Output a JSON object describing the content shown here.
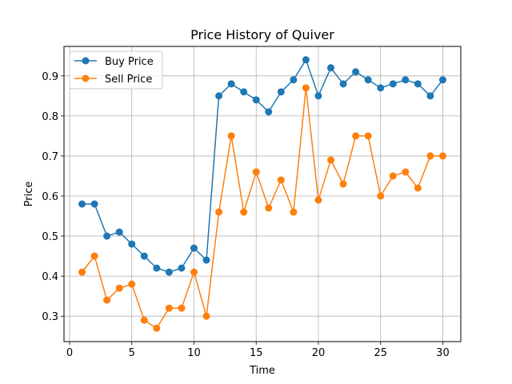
{
  "chart_data": {
    "type": "line",
    "title": "Price History of Quiver",
    "xlabel": "Time",
    "ylabel": "Price",
    "xlim": [
      -0.45,
      31.45
    ],
    "ylim": [
      0.2365,
      0.9735
    ],
    "xticks": [
      0,
      5,
      10,
      15,
      20,
      25,
      30
    ],
    "yticks": [
      0.3,
      0.4,
      0.5,
      0.6,
      0.7,
      0.8,
      0.9
    ],
    "grid": true,
    "legend_position": "top-left",
    "x": [
      1,
      2,
      3,
      4,
      5,
      6,
      7,
      8,
      9,
      10,
      11,
      12,
      13,
      14,
      15,
      16,
      17,
      18,
      19,
      20,
      21,
      22,
      23,
      24,
      25,
      26,
      27,
      28,
      29,
      30
    ],
    "series": [
      {
        "name": "Buy Price",
        "color": "#1f77b4",
        "values": [
          0.58,
          0.58,
          0.5,
          0.51,
          0.48,
          0.45,
          0.42,
          0.41,
          0.42,
          0.47,
          0.44,
          0.85,
          0.88,
          0.86,
          0.84,
          0.81,
          0.86,
          0.89,
          0.94,
          0.85,
          0.92,
          0.88,
          0.91,
          0.89,
          0.87,
          0.88,
          0.89,
          0.88,
          0.85,
          0.89
        ]
      },
      {
        "name": "Sell Price",
        "color": "#ff7f0e",
        "values": [
          0.41,
          0.45,
          0.34,
          0.37,
          0.38,
          0.29,
          0.27,
          0.32,
          0.32,
          0.41,
          0.3,
          0.56,
          0.75,
          0.56,
          0.66,
          0.57,
          0.64,
          0.56,
          0.87,
          0.59,
          0.69,
          0.63,
          0.75,
          0.75,
          0.6,
          0.65,
          0.66,
          0.62,
          0.7,
          0.7
        ]
      }
    ]
  }
}
